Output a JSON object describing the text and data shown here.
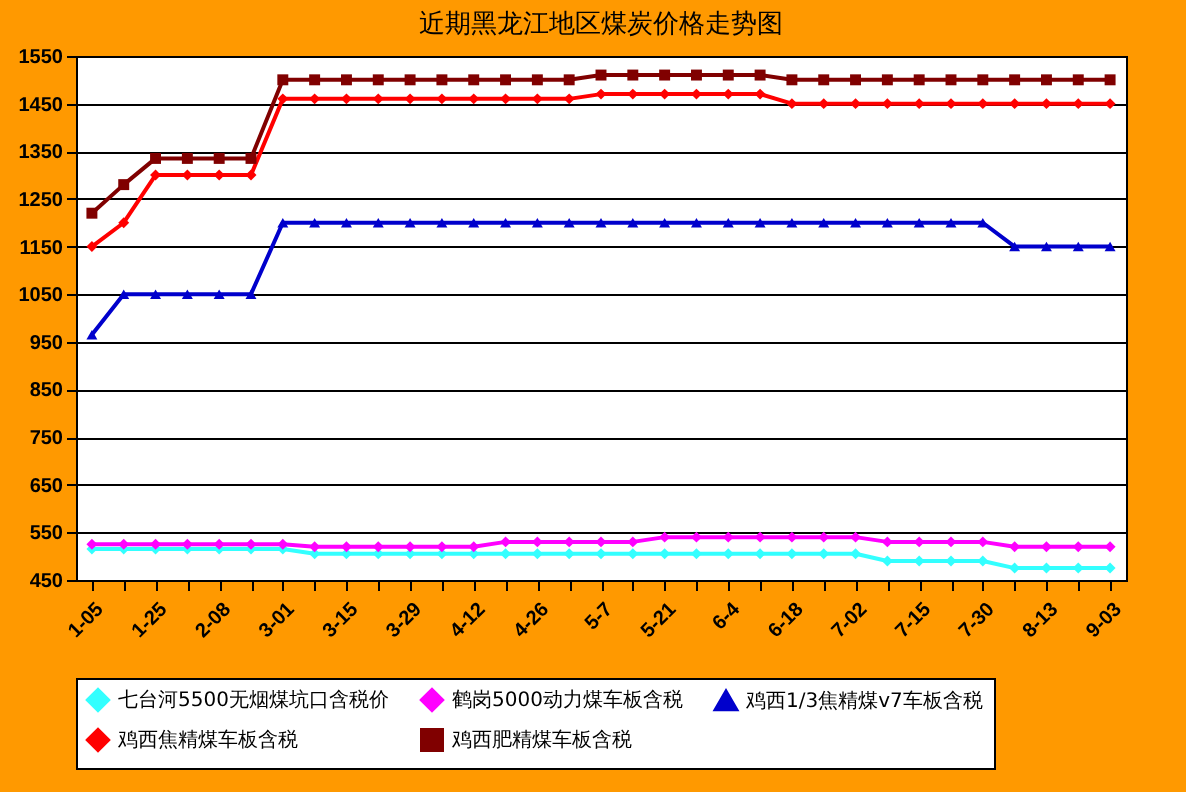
{
  "chart_data": {
    "type": "line",
    "title": "近期黑龙江地区煤炭价格走势图",
    "categories": [
      "1-05",
      null,
      "1-25",
      null,
      "2-08",
      null,
      "3-01",
      null,
      "3-15",
      null,
      "3-29",
      null,
      "4-12",
      null,
      "4-26",
      null,
      "5-7",
      null,
      "5-21",
      null,
      "6-4",
      null,
      "6-18",
      null,
      "7-02",
      null,
      "7-15",
      null,
      "7-30",
      null,
      "8-13",
      null,
      "9-03"
    ],
    "series": [
      {
        "name": "七台河5500无烟煤坑口含税价",
        "color": "#33ffff",
        "marker": "diamond",
        "values": [
          515,
          515,
          515,
          515,
          515,
          515,
          515,
          505,
          505,
          505,
          505,
          505,
          505,
          505,
          505,
          505,
          505,
          505,
          505,
          505,
          505,
          505,
          505,
          505,
          505,
          490,
          490,
          490,
          490,
          475,
          475,
          475,
          475
        ]
      },
      {
        "name": "鹤岗5000动力煤车板含税",
        "color": "#ff00ff",
        "marker": "diamond",
        "values": [
          525,
          525,
          525,
          525,
          525,
          525,
          525,
          520,
          520,
          520,
          520,
          520,
          520,
          530,
          530,
          530,
          530,
          530,
          540,
          540,
          540,
          540,
          540,
          540,
          540,
          530,
          530,
          530,
          530,
          520,
          520,
          520,
          520
        ]
      },
      {
        "name": "鸡西1/3焦精煤v7车板含税",
        "color": "#0000cc",
        "marker": "triangle",
        "values": [
          965,
          1050,
          1050,
          1050,
          1050,
          1050,
          1200,
          1200,
          1200,
          1200,
          1200,
          1200,
          1200,
          1200,
          1200,
          1200,
          1200,
          1200,
          1200,
          1200,
          1200,
          1200,
          1200,
          1200,
          1200,
          1200,
          1200,
          1200,
          1200,
          1150,
          1150,
          1150,
          1150
        ]
      },
      {
        "name": "鸡西焦精煤车板含税",
        "color": "#ff0000",
        "marker": "diamond",
        "values": [
          1150,
          1200,
          1300,
          1300,
          1300,
          1300,
          1460,
          1460,
          1460,
          1460,
          1460,
          1460,
          1460,
          1460,
          1460,
          1460,
          1470,
          1470,
          1470,
          1470,
          1470,
          1470,
          1450,
          1450,
          1450,
          1450,
          1450,
          1450,
          1450,
          1450,
          1450,
          1450,
          1450
        ]
      },
      {
        "name": "鸡西肥精煤车板含税",
        "color": "#800000",
        "marker": "square",
        "values": [
          1220,
          1280,
          1335,
          1335,
          1335,
          1335,
          1500,
          1500,
          1500,
          1500,
          1500,
          1500,
          1500,
          1500,
          1500,
          1500,
          1510,
          1510,
          1510,
          1510,
          1510,
          1510,
          1500,
          1500,
          1500,
          1500,
          1500,
          1500,
          1500,
          1500,
          1500,
          1500,
          1500
        ]
      }
    ],
    "ylim": [
      450,
      1550
    ],
    "yticks": [
      450,
      550,
      650,
      750,
      850,
      950,
      1050,
      1150,
      1250,
      1350,
      1450,
      1550
    ],
    "grid": "y",
    "legend": "bottom"
  }
}
